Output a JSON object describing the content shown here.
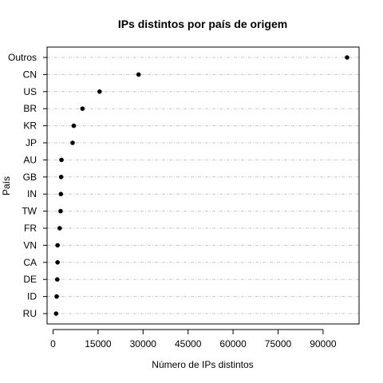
{
  "chart_data": {
    "type": "scatter",
    "title": "IPs distintos por país de origem",
    "xlabel": "Número de IPs distintos",
    "ylabel": "País",
    "xlim": [
      -2000,
      102000
    ],
    "xticks": [
      0,
      15000,
      30000,
      45000,
      60000,
      75000,
      90000
    ],
    "grid": "horizontal dotted-dashed",
    "categories": [
      "Outros",
      "CN",
      "US",
      "BR",
      "KR",
      "JP",
      "AU",
      "GB",
      "IN",
      "TW",
      "FR",
      "VN",
      "CA",
      "DE",
      "ID",
      "RU"
    ],
    "values": [
      98000,
      28500,
      15500,
      9800,
      6900,
      6500,
      2800,
      2700,
      2600,
      2500,
      2200,
      1500,
      1500,
      1400,
      1200,
      1000
    ]
  }
}
